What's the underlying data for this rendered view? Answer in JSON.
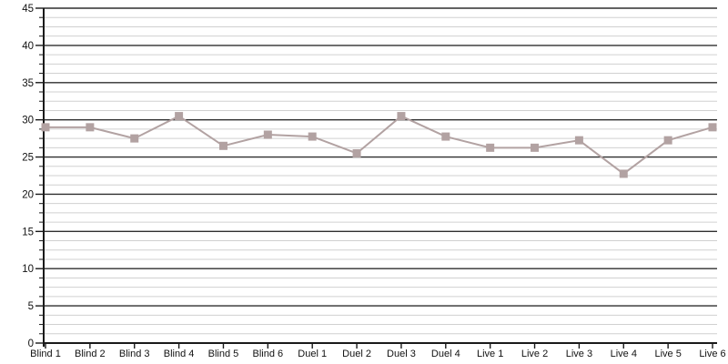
{
  "chart_data": {
    "type": "line",
    "title": "",
    "xlabel": "",
    "ylabel": "",
    "categories": [
      "Blind 1",
      "Blind 2",
      "Blind 3",
      "Blind 4",
      "Blind 5",
      "Blind 6",
      "Duel 1",
      "Duel 2",
      "Duel 3",
      "Duel 4",
      "Live 1",
      "Live 2",
      "Live 3",
      "Live 4",
      "Live 5",
      "Live 6"
    ],
    "series": [
      {
        "name": "series-1",
        "values": [
          29,
          29,
          27.5,
          30.5,
          26.5,
          28,
          27.75,
          25.5,
          30.5,
          27.75,
          26.25,
          26.25,
          27.25,
          22.75,
          27.25,
          29
        ]
      }
    ],
    "ylim": [
      0,
      45
    ],
    "y_major_step": 5,
    "y_minor_step": 1.25,
    "y_tick_labels": [
      "0",
      "5",
      "10",
      "15",
      "20",
      "25",
      "30",
      "35",
      "40",
      "45"
    ],
    "grid": true,
    "legend_visible": false,
    "marker_shape": "square",
    "colors": {
      "background": "#ffffff",
      "series_line": "#b2a2a2",
      "marker_fill": "#b2a2a2",
      "major_gridline": "#2f2f2f",
      "minor_gridline": "#d0d0d0",
      "axis_line": "#1a1a1a",
      "tick_label": "#111111"
    }
  }
}
